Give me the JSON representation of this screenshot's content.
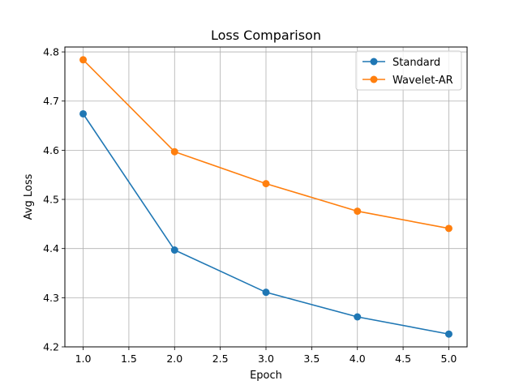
{
  "chart_data": {
    "type": "line",
    "title": "Loss Comparison",
    "xlabel": "Epoch",
    "ylabel": "Avg Loss",
    "x": [
      1.0,
      2.0,
      3.0,
      4.0,
      5.0
    ],
    "xlim": [
      0.8,
      5.2
    ],
    "ylim": [
      4.2,
      4.81
    ],
    "xticks": [
      1.0,
      1.5,
      2.0,
      2.5,
      3.0,
      3.5,
      4.0,
      4.5,
      5.0
    ],
    "xtick_labels": [
      "1.0",
      "1.5",
      "2.0",
      "2.5",
      "3.0",
      "3.5",
      "4.0",
      "4.5",
      "5.0"
    ],
    "yticks": [
      4.2,
      4.3,
      4.4,
      4.5,
      4.6,
      4.7,
      4.8
    ],
    "ytick_labels": [
      "4.2",
      "4.3",
      "4.4",
      "4.5",
      "4.6",
      "4.7",
      "4.8"
    ],
    "grid": true,
    "legend_position": "top-right",
    "series": [
      {
        "name": "Standard",
        "color": "#1f77b4",
        "marker": "circle",
        "values": [
          4.674,
          4.397,
          4.311,
          4.261,
          4.226
        ]
      },
      {
        "name": "Wavelet-AR",
        "color": "#ff7f0e",
        "marker": "circle",
        "values": [
          4.784,
          4.597,
          4.532,
          4.476,
          4.441
        ]
      }
    ]
  }
}
